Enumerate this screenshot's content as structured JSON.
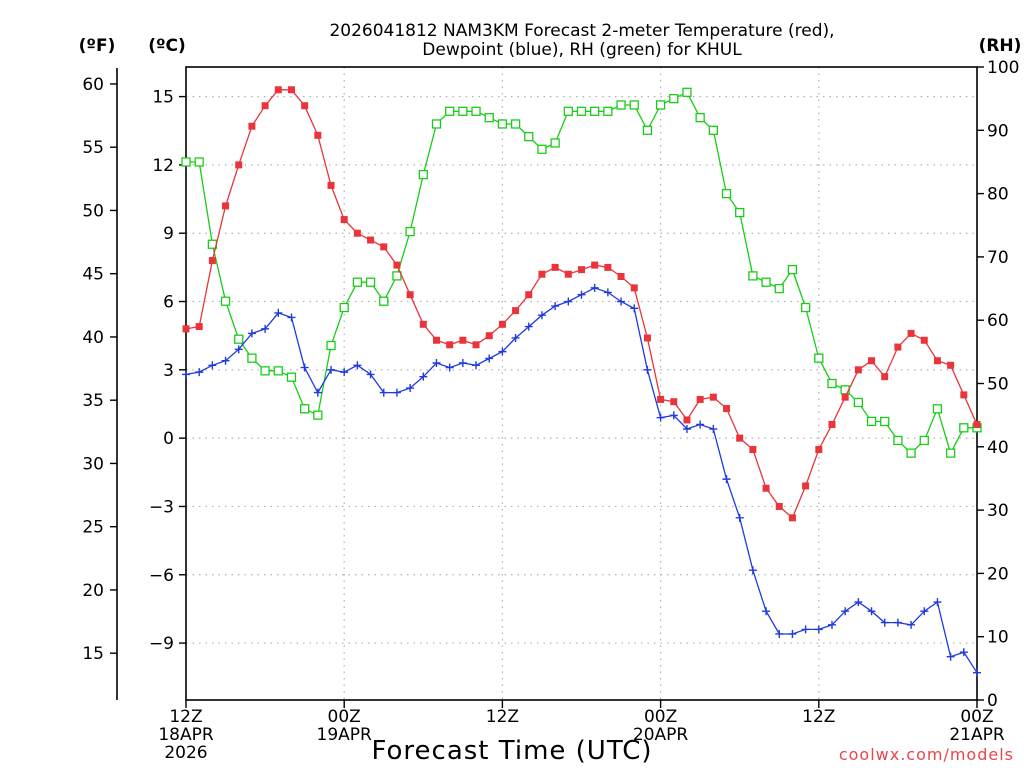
{
  "chart_data": {
    "type": "line",
    "title_line1": "2026041812 NAM3KM Forecast 2-meter Temperature (red),",
    "title_line2": "Dewpoint (blue), RH (green) for KHUL",
    "xlabel": "Forecast Time (UTC)",
    "credit": "coolwx.com/models",
    "units": {
      "fahrenheit": "(ºF)",
      "celsius": "(ºC)",
      "rh": "(RH)"
    },
    "x_range_hours": [
      0,
      60
    ],
    "x_ticks": [
      {
        "hour": 0,
        "line1": "12Z",
        "line2": "18APR",
        "line3": "2026"
      },
      {
        "hour": 12,
        "line1": "00Z",
        "line2": "19APR",
        "line3": ""
      },
      {
        "hour": 24,
        "line1": "12Z",
        "line2": "",
        "line3": ""
      },
      {
        "hour": 36,
        "line1": "00Z",
        "line2": "20APR",
        "line3": ""
      },
      {
        "hour": 48,
        "line1": "12Z",
        "line2": "",
        "line3": ""
      },
      {
        "hour": 60,
        "line1": "00Z",
        "line2": "21APR",
        "line3": ""
      }
    ],
    "y_celsius": {
      "range": [
        -11.5,
        16.3
      ],
      "ticks": [
        "15",
        "12",
        "9",
        "6",
        "3",
        "0",
        "−3",
        "−6",
        "−9"
      ]
    },
    "y_fahrenheit": {
      "ticks": [
        "60",
        "55",
        "50",
        "45",
        "40",
        "35",
        "30",
        "25",
        "20",
        "15"
      ]
    },
    "y_rh": {
      "range": [
        0,
        100
      ],
      "ticks": [
        "100",
        "90",
        "80",
        "70",
        "60",
        "50",
        "40",
        "30",
        "20",
        "10",
        "0"
      ]
    },
    "grid": true,
    "colors": {
      "temperature": "#e8343a",
      "dewpoint": "#1f3be0",
      "rh": "#19cc19",
      "grid": "#b0b0b0",
      "credit": "#e8464b"
    },
    "series": [
      {
        "name": "2-meter Temperature (red)",
        "unit": "C",
        "marker": "filled-square",
        "values": [
          4.8,
          4.9,
          7.8,
          10.2,
          12.0,
          13.7,
          14.6,
          15.3,
          15.3,
          14.6,
          13.3,
          11.1,
          9.6,
          9.0,
          8.7,
          8.4,
          7.6,
          6.3,
          5.0,
          4.3,
          4.1,
          4.3,
          4.1,
          4.5,
          5.0,
          5.6,
          6.3,
          7.2,
          7.5,
          7.2,
          7.4,
          7.6,
          7.5,
          7.1,
          6.6,
          4.4,
          1.7,
          1.6,
          0.8,
          1.7,
          1.8,
          1.3,
          0.0,
          -0.5,
          -2.2,
          -3.0,
          -3.5,
          -2.1,
          -0.5,
          0.6,
          1.8,
          3.0,
          3.4,
          2.7,
          4.0,
          4.6,
          4.3,
          3.4,
          3.2,
          1.9,
          0.6
        ]
      },
      {
        "name": "Dewpoint (blue)",
        "unit": "C",
        "marker": "plus",
        "values": [
          2.8,
          2.9,
          3.2,
          3.4,
          3.9,
          4.6,
          4.8,
          5.5,
          5.3,
          3.1,
          2.0,
          3.0,
          2.9,
          3.2,
          2.8,
          2.0,
          2.0,
          2.2,
          2.7,
          3.3,
          3.1,
          3.3,
          3.2,
          3.5,
          3.8,
          4.4,
          4.9,
          5.4,
          5.8,
          6.0,
          6.3,
          6.6,
          6.4,
          6.0,
          5.7,
          3.0,
          0.9,
          1.0,
          0.4,
          0.6,
          0.4,
          -1.8,
          -3.5,
          -5.8,
          -7.6,
          -8.6,
          -8.6,
          -8.4,
          -8.4,
          -8.2,
          -7.6,
          -7.2,
          -7.6,
          -8.1,
          -8.1,
          -8.2,
          -7.6,
          -7.2,
          -9.6,
          -9.4,
          -10.3
        ]
      },
      {
        "name": "RH (green)",
        "unit": "%",
        "marker": "open-square",
        "values": [
          85,
          85,
          72,
          63,
          57,
          54,
          52,
          52,
          51,
          46,
          45,
          56,
          62,
          66,
          66,
          63,
          67,
          74,
          83,
          91,
          93,
          93,
          93,
          92,
          91,
          91,
          89,
          87,
          88,
          93,
          93,
          93,
          93,
          94,
          94,
          90,
          94,
          95,
          96,
          92,
          90,
          80,
          77,
          67,
          66,
          65,
          68,
          62,
          54,
          50,
          49,
          47,
          44,
          44,
          41,
          39,
          41,
          46,
          39,
          43,
          43
        ]
      }
    ]
  }
}
